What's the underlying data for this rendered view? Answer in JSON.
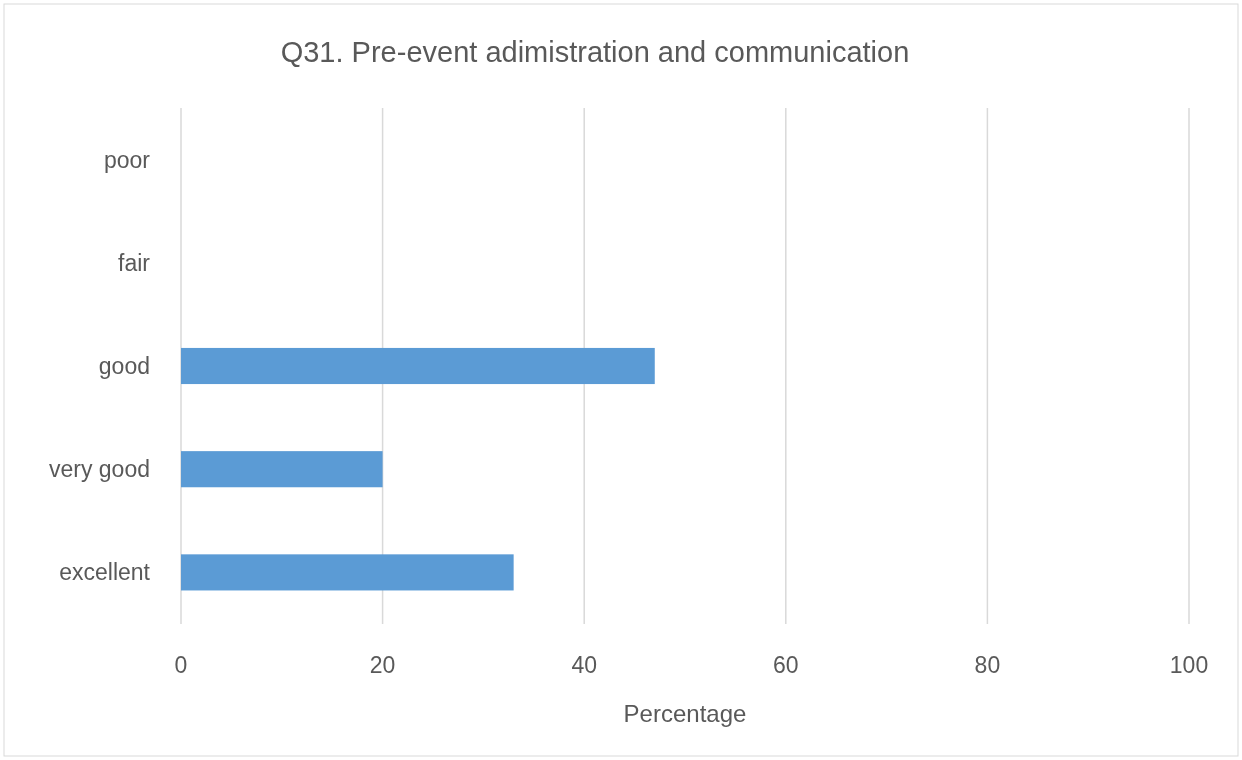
{
  "chart_data": {
    "type": "bar",
    "orientation": "horizontal",
    "title": "Q31. Pre-event adimistration and communication",
    "xlabel": "Percentage",
    "categories": [
      "poor",
      "fair",
      "good",
      "very good",
      "excellent"
    ],
    "values": [
      0,
      0,
      47,
      20,
      33
    ],
    "color": "#5b9bd5",
    "xlim": [
      0,
      100
    ],
    "xticks": [
      0,
      20,
      40,
      60,
      80,
      100
    ],
    "grid": "x"
  }
}
